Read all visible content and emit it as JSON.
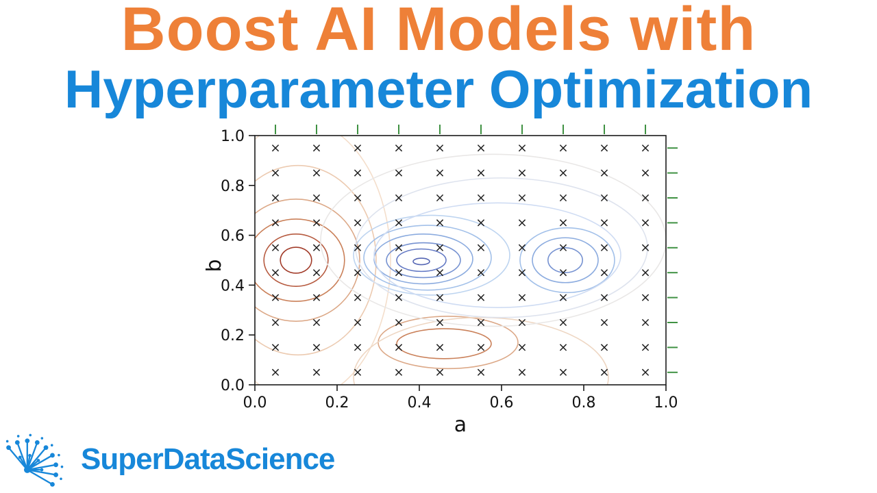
{
  "header": {
    "title": "Boost AI Models with",
    "title_color": "#EE8038",
    "subtitle": "Hyperparameter Optimization",
    "subtitle_color": "#1787D9"
  },
  "logo": {
    "text": "SuperDataScience",
    "color": "#1787D9",
    "icon": "dandelion-network-icon"
  },
  "chart_data": {
    "type": "contour",
    "title": "",
    "xlabel": "a",
    "ylabel": "b",
    "xlim": [
      0,
      1
    ],
    "ylim": [
      0,
      1
    ],
    "grid": false,
    "xticks": [
      "0.0",
      "0.2",
      "0.4",
      "0.6",
      "0.8",
      "1.0"
    ],
    "yticks": [
      "0.0",
      "0.2",
      "0.4",
      "0.6",
      "0.8",
      "1.0"
    ],
    "sample_grid": {
      "marker": "x",
      "color": "#1f1f1f",
      "a_values": [
        0.05,
        0.15,
        0.25,
        0.35,
        0.45,
        0.55,
        0.65,
        0.75,
        0.85,
        0.95
      ],
      "b_values": [
        0.05,
        0.15,
        0.25,
        0.35,
        0.45,
        0.55,
        0.65,
        0.75,
        0.85,
        0.95
      ]
    },
    "rug": {
      "color": "#3F9142",
      "top_values": [
        0.05,
        0.15,
        0.25,
        0.35,
        0.45,
        0.55,
        0.65,
        0.75,
        0.85,
        0.95
      ],
      "right_values": [
        0.05,
        0.15,
        0.25,
        0.35,
        0.45,
        0.55,
        0.65,
        0.75,
        0.85,
        0.95
      ]
    },
    "contours": [
      {
        "cx": 0.1,
        "cy": 0.5,
        "rx": 0.038,
        "ry": 0.052,
        "color": "#A23C2A"
      },
      {
        "cx": 0.1,
        "cy": 0.5,
        "rx": 0.078,
        "ry": 0.105,
        "color": "#B65A3F"
      },
      {
        "cx": 0.1,
        "cy": 0.5,
        "rx": 0.118,
        "ry": 0.165,
        "color": "#CA8059"
      },
      {
        "cx": 0.1,
        "cy": 0.5,
        "rx": 0.155,
        "ry": 0.245,
        "color": "#DCA887"
      },
      {
        "cx": 0.105,
        "cy": 0.5,
        "rx": 0.19,
        "ry": 0.38,
        "color": "#ECCAB0"
      },
      {
        "cx": 0.11,
        "cy": 0.5,
        "rx": 0.22,
        "ry": 0.56,
        "color": "#F4DECB"
      },
      {
        "cx": 0.46,
        "cy": 0.165,
        "rx": 0.115,
        "ry": 0.06,
        "color": "#CA8059"
      },
      {
        "cx": 0.47,
        "cy": 0.17,
        "rx": 0.17,
        "ry": 0.105,
        "color": "#DCA887"
      },
      {
        "cx": 0.55,
        "cy": 0.03,
        "rx": 0.31,
        "ry": 0.24,
        "color": "#EED6C2"
      },
      {
        "cx": 0.405,
        "cy": 0.495,
        "rx": 0.02,
        "ry": 0.013,
        "color": "#5566B4"
      },
      {
        "cx": 0.405,
        "cy": 0.5,
        "rx": 0.06,
        "ry": 0.045,
        "color": "#6379C4"
      },
      {
        "cx": 0.41,
        "cy": 0.5,
        "rx": 0.09,
        "ry": 0.07,
        "color": "#7692D1"
      },
      {
        "cx": 0.41,
        "cy": 0.505,
        "rx": 0.12,
        "ry": 0.1,
        "color": "#8BABDF"
      },
      {
        "cx": 0.42,
        "cy": 0.51,
        "rx": 0.155,
        "ry": 0.13,
        "color": "#A2C0E9"
      },
      {
        "cx": 0.43,
        "cy": 0.52,
        "rx": 0.19,
        "ry": 0.16,
        "color": "#BDD4F0"
      },
      {
        "cx": 0.755,
        "cy": 0.5,
        "rx": 0.042,
        "ry": 0.05,
        "color": "#7692D1"
      },
      {
        "cx": 0.755,
        "cy": 0.5,
        "rx": 0.08,
        "ry": 0.09,
        "color": "#8BABDF"
      },
      {
        "cx": 0.76,
        "cy": 0.5,
        "rx": 0.115,
        "ry": 0.13,
        "color": "#A2C0E9"
      },
      {
        "cx": 0.59,
        "cy": 0.52,
        "rx": 0.3,
        "ry": 0.21,
        "color": "#CFDCF3"
      },
      {
        "cx": 0.6,
        "cy": 0.55,
        "rx": 0.355,
        "ry": 0.28,
        "color": "#DEE3EE"
      },
      {
        "cx": 0.58,
        "cy": 0.58,
        "rx": 0.42,
        "ry": 0.345,
        "color": "#E9E7E6"
      }
    ]
  }
}
